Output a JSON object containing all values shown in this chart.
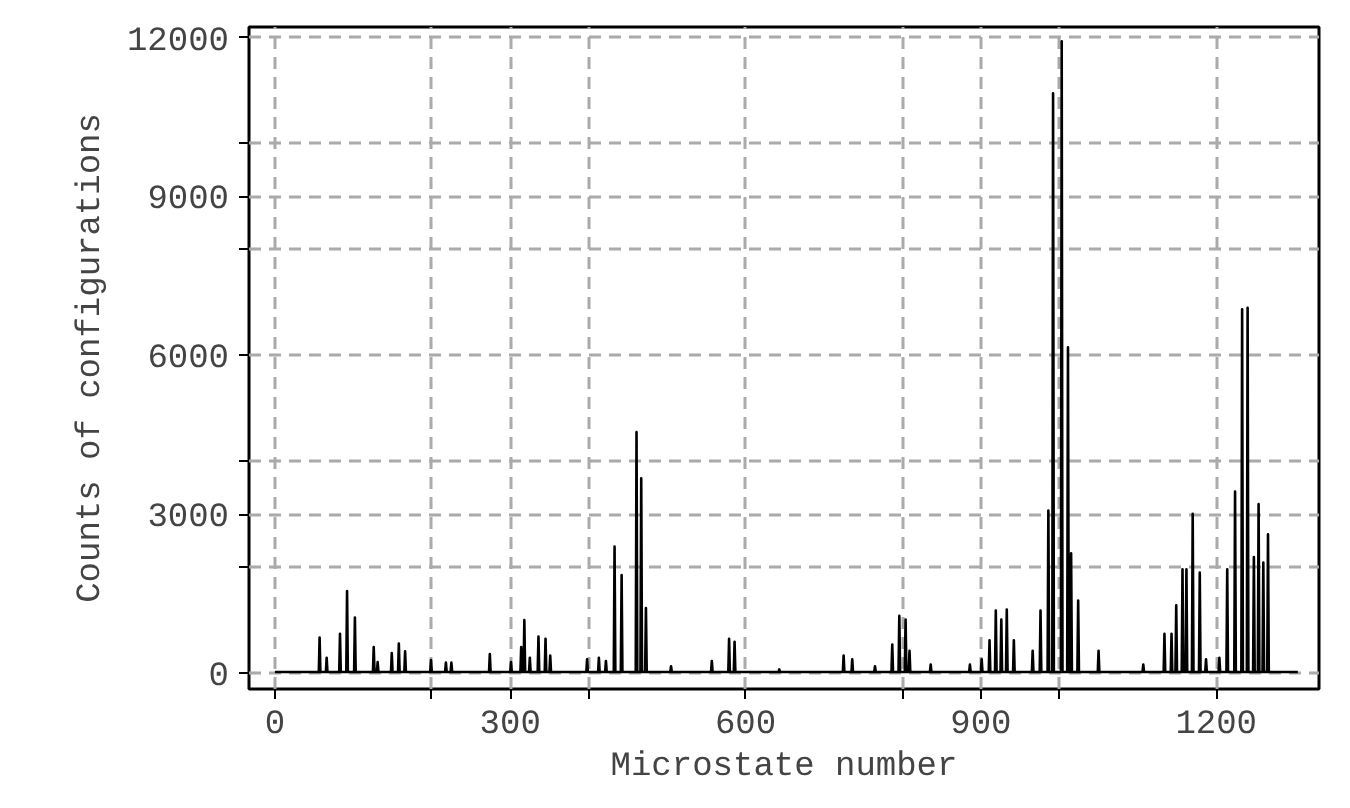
{
  "chart_data": {
    "type": "line",
    "xlabel": "Microstate number",
    "ylabel": "Counts of configurations",
    "xlim": [
      -33,
      1331
    ],
    "ylim": [
      -300,
      12200
    ],
    "xticks": [
      0,
      {
        "value": 200,
        "label": null
      },
      300,
      {
        "value": 400,
        "label": null
      },
      600,
      {
        "value": 800,
        "label": null
      },
      900,
      {
        "value": 1000,
        "label": null
      },
      1200
    ],
    "yticks": [
      0,
      {
        "value": 2000,
        "label": null
      },
      3000,
      {
        "value": 4000,
        "label": null
      },
      6000,
      {
        "value": 8000,
        "label": null
      },
      9000,
      {
        "value": 10000,
        "label": null
      },
      12000
    ],
    "grid": true,
    "marker": "none",
    "line_style": "solid",
    "series": [
      {
        "color": "#000000",
        "x": [
          0,
          56,
          57,
          58,
          65,
          66,
          67,
          82,
          83,
          84,
          91,
          92,
          93,
          101,
          102,
          103,
          125,
          126,
          127,
          130,
          131,
          132,
          148,
          149,
          150,
          157,
          158,
          159,
          165,
          166,
          167,
          198,
          199,
          200,
          217,
          218,
          219,
          224,
          225,
          226,
          273,
          274,
          275,
          300,
          301,
          302,
          313,
          314,
          315,
          317,
          318,
          319,
          324,
          325,
          326,
          335,
          336,
          337,
          344,
          345,
          346,
          350,
          351,
          352,
          397,
          398,
          399,
          412,
          413,
          414,
          421,
          422,
          423,
          432,
          433,
          434,
          441,
          442,
          443,
          460,
          461,
          462,
          466,
          467,
          468,
          472,
          473,
          474,
          504,
          505,
          506,
          556,
          557,
          558,
          578,
          579,
          580,
          585,
          586,
          587,
          642,
          643,
          644,
          724,
          725,
          726,
          735,
          736,
          737,
          764,
          765,
          766,
          786,
          787,
          788,
          795,
          796,
          797,
          803,
          804,
          805,
          808,
          809,
          810,
          835,
          836,
          837,
          885,
          886,
          887,
          900,
          901,
          902,
          910,
          911,
          912,
          918,
          919,
          920,
          925,
          926,
          927,
          932,
          933,
          934,
          941,
          942,
          943,
          965,
          966,
          967,
          975,
          976,
          977,
          985,
          986,
          987,
          991,
          992,
          993,
          1002,
          1003,
          1004,
          1010,
          1011,
          1012,
          1014,
          1015,
          1016,
          1023,
          1024,
          1025,
          1049,
          1050,
          1051,
          1106,
          1107,
          1108,
          1133,
          1134,
          1135,
          1142,
          1143,
          1144,
          1148,
          1149,
          1150,
          1156,
          1157,
          1158,
          1161,
          1162,
          1163,
          1169,
          1170,
          1171,
          1178,
          1179,
          1180,
          1186,
          1187,
          1188,
          1203,
          1204,
          1205,
          1213,
          1214,
          1215,
          1223,
          1224,
          1225,
          1232,
          1233,
          1234,
          1239,
          1240,
          1241,
          1247,
          1248,
          1249,
          1253,
          1254,
          1255,
          1259,
          1260,
          1261,
          1265,
          1266,
          1267,
          1304
        ],
        "values": [
          20,
          20,
          670,
          20,
          20,
          290,
          20,
          20,
          740,
          20,
          20,
          1550,
          20,
          20,
          1050,
          20,
          20,
          490,
          20,
          20,
          210,
          20,
          20,
          380,
          20,
          20,
          560,
          20,
          20,
          410,
          20,
          20,
          245,
          20,
          20,
          200,
          20,
          20,
          200,
          20,
          20,
          360,
          20,
          20,
          210,
          20,
          20,
          490,
          20,
          20,
          1000,
          20,
          20,
          290,
          20,
          20,
          690,
          20,
          20,
          650,
          20,
          20,
          330,
          20,
          20,
          260,
          20,
          20,
          290,
          20,
          20,
          230,
          20,
          20,
          2390,
          20,
          20,
          1850,
          20,
          20,
          4550,
          20,
          20,
          3680,
          20,
          20,
          1230,
          20,
          20,
          130,
          20,
          20,
          230,
          20,
          20,
          650,
          20,
          20,
          590,
          20,
          20,
          70,
          20,
          20,
          330,
          20,
          20,
          260,
          20,
          20,
          130,
          20,
          20,
          540,
          20,
          20,
          1080,
          20,
          20,
          1010,
          20,
          20,
          420,
          20,
          20,
          160,
          20,
          20,
          160,
          20,
          20,
          260,
          20,
          20,
          620,
          20,
          20,
          1180,
          20,
          20,
          1010,
          20,
          20,
          1200,
          20,
          20,
          620,
          20,
          20,
          420,
          20,
          20,
          1180,
          20,
          20,
          3070,
          20,
          20,
          10950,
          20,
          20,
          11930,
          20,
          20,
          6150,
          20,
          20,
          2260,
          20,
          20,
          1370,
          20,
          20,
          420,
          20,
          20,
          160,
          20,
          20,
          740,
          20,
          20,
          740,
          20,
          20,
          1280,
          20,
          20,
          1960,
          20,
          20,
          1960,
          20,
          20,
          3010,
          20,
          20,
          1900,
          20,
          20,
          260,
          20,
          20,
          290,
          20,
          20,
          1960,
          20,
          20,
          3430,
          20,
          20,
          6870,
          20,
          20,
          6900,
          20,
          20,
          2190,
          20,
          20,
          3190,
          20,
          20,
          2090,
          20,
          20,
          2620,
          20,
          20
        ]
      }
    ]
  }
}
